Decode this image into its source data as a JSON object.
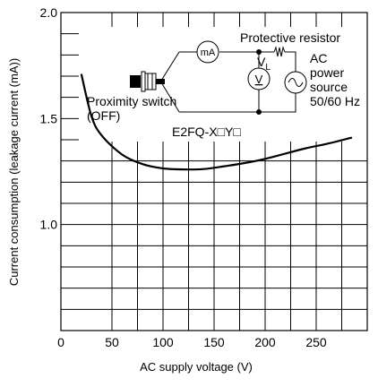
{
  "chart_data": {
    "type": "line",
    "title": "",
    "xlabel": "AC supply voltage (V)",
    "ylabel": "Current consumption (leakage current (mA))",
    "xlim": [
      0,
      300
    ],
    "ylim": [
      0.5,
      2.0
    ],
    "x_ticks": [
      "0",
      "50",
      "100",
      "150",
      "200",
      "250"
    ],
    "y_ticks": [
      "1.0",
      "1.5",
      "2.0"
    ],
    "grid": true,
    "series": [
      {
        "name": "",
        "x": [
          20,
          30,
          40,
          60,
          80,
          100,
          120,
          140,
          160,
          180,
          200,
          220,
          240,
          260,
          285
        ],
        "y": [
          1.71,
          1.51,
          1.42,
          1.33,
          1.285,
          1.265,
          1.26,
          1.262,
          1.275,
          1.29,
          1.31,
          1.335,
          1.36,
          1.38,
          1.41
        ]
      }
    ]
  },
  "diagram": {
    "protective_resistor_label": "Protective resistor",
    "ammeter_label": "mA",
    "vl_label": "V",
    "vl_subscript": "L",
    "voltmeter_label": "V",
    "source_label_lines": [
      "AC",
      "power",
      "source",
      "50/60 Hz"
    ],
    "switch_label_lines": [
      "Proximity switch",
      "(OFF)"
    ],
    "model_label": "E2FQ-X□Y□"
  }
}
